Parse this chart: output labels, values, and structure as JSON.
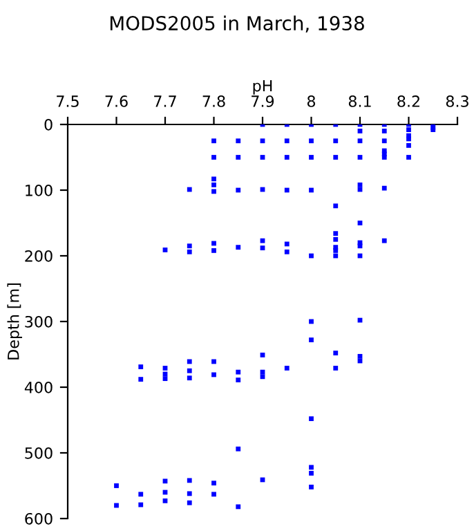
{
  "chart_data": {
    "type": "scatter",
    "title": "MODS2005 in March, 1938",
    "xlabel": "pH",
    "ylabel": "Depth [m]",
    "xlim": [
      7.5,
      8.3
    ],
    "xticks": [
      7.5,
      7.6,
      7.7,
      7.8,
      7.9,
      8,
      8.1,
      8.2,
      8.3
    ],
    "ylim": [
      600,
      0
    ],
    "yticks": [
      0,
      100,
      200,
      300,
      400,
      500,
      600
    ],
    "marker": "square",
    "grid": false,
    "series": [
      {
        "color": "#0000ff",
        "x": [
          7.9,
          7.95,
          8.0,
          8.05,
          8.1,
          8.15,
          8.2,
          8.25,
          8.1,
          8.15,
          8.2,
          8.2,
          8.25,
          8.25,
          7.8,
          7.85,
          7.9,
          7.95,
          8.0,
          8.05,
          8.1,
          8.15,
          8.2,
          8.2,
          7.8,
          7.85,
          7.9,
          7.95,
          8.0,
          8.05,
          8.1,
          8.15,
          8.15,
          8.15,
          8.2,
          7.75,
          7.8,
          7.8,
          7.8,
          7.85,
          7.9,
          7.95,
          8.0,
          8.1,
          8.1,
          8.15,
          8.05,
          8.1,
          8.05,
          8.05,
          8.05,
          8.05,
          8.1,
          8.1,
          8.15,
          7.9,
          7.95,
          7.95,
          7.85,
          7.8,
          7.8,
          7.75,
          7.75,
          7.7,
          8.0,
          8.05,
          8.1,
          7.9,
          8.0,
          8.0,
          8.0,
          8.05,
          8.05,
          8.1,
          8.1,
          8.1,
          7.9,
          7.9,
          7.9,
          7.95,
          7.85,
          7.85,
          7.8,
          7.8,
          7.75,
          7.75,
          7.75,
          7.7,
          7.7,
          7.7,
          7.65,
          7.65,
          8.0,
          8.0,
          8.0,
          7.9,
          7.85,
          7.85,
          7.8,
          7.8,
          7.75,
          7.75,
          7.75,
          7.7,
          7.7,
          7.7,
          7.65,
          7.65,
          7.6,
          7.6
        ],
        "values": [
          0,
          0,
          0,
          0,
          0,
          0,
          0,
          0,
          10,
          10,
          8,
          17,
          5,
          8,
          25,
          25,
          25,
          25,
          25,
          25,
          25,
          25,
          22,
          32,
          50,
          50,
          50,
          50,
          50,
          50,
          50,
          40,
          45,
          50,
          50,
          99,
          83,
          92,
          102,
          100,
          99,
          100,
          100,
          92,
          99,
          97,
          124,
          150,
          166,
          175,
          187,
          192,
          180,
          185,
          177,
          177,
          182,
          194,
          187,
          181,
          192,
          185,
          194,
          191,
          200,
          200,
          200,
          188,
          300,
          328,
          448,
          348,
          371,
          298,
          353,
          360,
          351,
          377,
          384,
          371,
          377,
          389,
          361,
          381,
          361,
          375,
          386,
          371,
          380,
          387,
          369,
          388,
          522,
          531,
          552,
          541,
          494,
          582,
          546,
          563,
          542,
          562,
          576,
          543,
          560,
          573,
          563,
          579,
          550,
          580
        ]
      }
    ]
  }
}
